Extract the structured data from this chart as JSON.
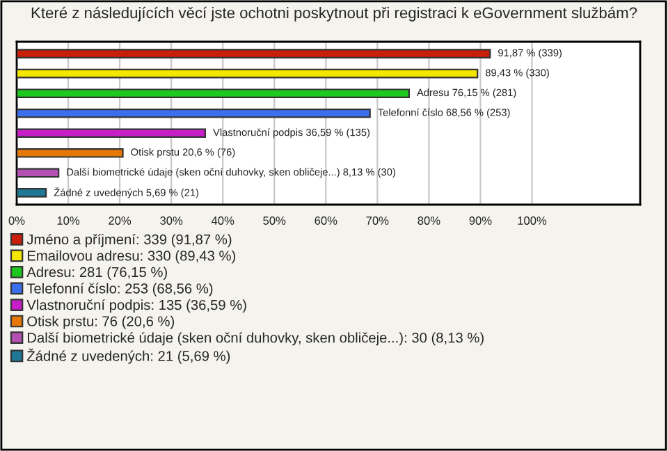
{
  "chart_data": {
    "type": "bar",
    "orientation": "horizontal",
    "stacked": true,
    "title": "Které z následujících věcí jste ochotni poskytnout při registraci k eGovernment službám?",
    "categories": [
      null,
      null,
      null,
      null,
      null,
      null,
      null,
      null
    ],
    "series": [
      {
        "name": "Jméno a příjmení: 339 (91,87 %)",
        "color": "#c81e0a",
        "values": [
          91.87,
          null,
          null,
          null,
          null,
          null,
          null,
          null
        ],
        "value_labels": [
          "91,87 % (339)",
          null,
          null,
          null,
          null,
          null,
          null,
          null
        ]
      },
      {
        "name": "Emailovou adresu: 330 (89,43 %)",
        "color": "#f5e600",
        "values": [
          null,
          89.43,
          null,
          null,
          null,
          null,
          null,
          null
        ],
        "value_labels": [
          null,
          "89,43 % (330)",
          null,
          null,
          null,
          null,
          null,
          null
        ]
      },
      {
        "name": "Adresu: 281 (76,15 %)",
        "color": "#1ec81e",
        "values": [
          null,
          null,
          76.15,
          null,
          null,
          null,
          null,
          null
        ],
        "value_labels": [
          null,
          null,
          "Adresu 76,15 % (281)",
          null,
          null,
          null,
          null,
          null
        ]
      },
      {
        "name": "Telefonní číslo: 253 (68,56 %)",
        "color": "#3c6ef0",
        "values": [
          null,
          null,
          null,
          68.56,
          null,
          null,
          null,
          null
        ],
        "value_labels": [
          null,
          null,
          null,
          "Telefonní číslo 68,56 % (253)",
          null,
          null,
          null,
          null
        ]
      },
      {
        "name": "Vlastnoruční podpis: 135 (36,59 %)",
        "color": "#c81ec8",
        "values": [
          null,
          null,
          null,
          null,
          36.59,
          null,
          null,
          null
        ],
        "value_labels": [
          null,
          null,
          null,
          null,
          "Vlastnoruční podpis 36,59 % (135)",
          null,
          null,
          null
        ]
      },
      {
        "name": "Otisk prstu: 76 (20,6 %)",
        "color": "#e6780a",
        "values": [
          null,
          null,
          null,
          null,
          null,
          20.6,
          null,
          null
        ],
        "value_labels": [
          null,
          null,
          null,
          null,
          null,
          "Otisk prstu 20,6 % (76)",
          null,
          null
        ]
      },
      {
        "name": "Další biometrické údaje (sken oční duhovky, sken obličeje...): 30 (8,13 %)",
        "color": "#b450b4",
        "values": [
          null,
          null,
          null,
          null,
          null,
          null,
          8.13,
          null
        ],
        "value_labels": [
          null,
          null,
          null,
          null,
          null,
          null,
          "Další biometrické údaje (sken oční duhovky, sken obličeje...) 8,13 % (30)",
          null
        ]
      },
      {
        "name": "Žádné z uvedených: 21 (5,69 %)",
        "color": "#1e7896",
        "values": [
          null,
          null,
          null,
          null,
          null,
          null,
          null,
          5.69
        ],
        "value_labels": [
          null,
          null,
          null,
          null,
          null,
          null,
          null,
          "Žádné z uvedených 5,69 % (21)"
        ]
      }
    ],
    "xlim": [
      0,
      121
    ],
    "xticks": [
      {
        "value": 0,
        "label": "0%"
      },
      {
        "value": 10,
        "label": "10%"
      },
      {
        "value": 20,
        "label": "20%"
      },
      {
        "value": 30,
        "label": "30%"
      },
      {
        "value": 40,
        "label": "40%"
      },
      {
        "value": 50,
        "label": "50%"
      },
      {
        "value": 60,
        "label": "60%"
      },
      {
        "value": 70,
        "label": "70%"
      },
      {
        "value": 80,
        "label": "80%"
      },
      {
        "value": 90,
        "label": "90%"
      },
      {
        "value": 100,
        "label": "100%"
      }
    ],
    "grid": "x",
    "legend": "bottom",
    "tick_labels": "x"
  }
}
